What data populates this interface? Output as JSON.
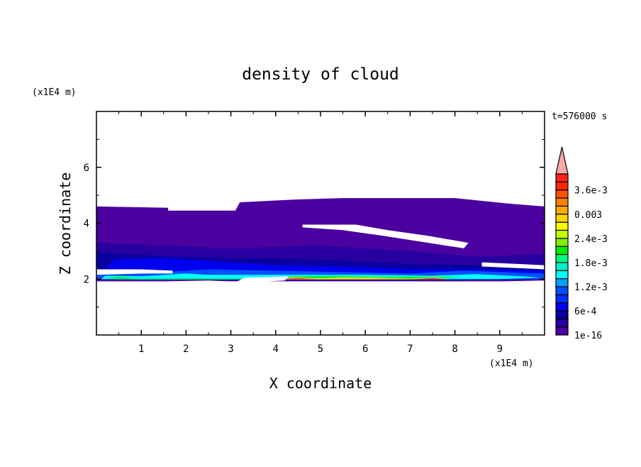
{
  "chart_data": {
    "type": "heatmap",
    "subtype": "filled-contour",
    "title": "density of cloud",
    "xlabel": "X coordinate",
    "ylabel": "Z coordinate",
    "x_unit": "(x1E4 m)",
    "y_unit": "(x1E4 m)",
    "time_label": "t=576000 s",
    "xlim": [
      0,
      10
    ],
    "ylim": [
      0,
      8
    ],
    "xticks": [
      1,
      2,
      3,
      4,
      5,
      6,
      7,
      8,
      9
    ],
    "yticks": [
      2,
      4,
      6
    ],
    "colorbar": {
      "levels_min": 1e-16,
      "level_step": 0.0002,
      "n_levels": 20,
      "extend": "max",
      "extend_color": "#F8A8A8",
      "colors": [
        "#4B00A0",
        "#2800A0",
        "#0A00A0",
        "#0000F0",
        "#0030FF",
        "#0050FF",
        "#00A0FF",
        "#00FFFF",
        "#00F0C8",
        "#00FF80",
        "#00F000",
        "#80F000",
        "#C8FF00",
        "#FFFF00",
        "#FFD700",
        "#FFAA00",
        "#FF8000",
        "#FF5000",
        "#FF2800",
        "#FF2020"
      ],
      "tick_labels": [
        "1e-16",
        "6e-4",
        "1.2e-3",
        "1.8e-3",
        "2.4e-3",
        "0.003",
        "3.6e-3"
      ],
      "tick_level_index": [
        0,
        3,
        6,
        9,
        12,
        15,
        18
      ]
    },
    "regions": [
      {
        "level": 0,
        "points": [
          [
            0,
            1.9
          ],
          [
            0,
            4.6
          ],
          [
            1.6,
            4.55
          ],
          [
            1.6,
            4.45
          ],
          [
            3.1,
            4.45
          ],
          [
            3.2,
            4.75
          ],
          [
            4.5,
            4.85
          ],
          [
            5.5,
            4.9
          ],
          [
            8,
            4.9
          ],
          [
            9.2,
            4.7
          ],
          [
            10,
            4.6
          ],
          [
            10,
            1.95
          ],
          [
            8.5,
            1.9
          ],
          [
            6,
            1.85
          ],
          [
            3.3,
            1.9
          ],
          [
            2.5,
            1.95
          ],
          [
            1,
            1.9
          ]
        ]
      },
      {
        "level": 1,
        "points": [
          [
            0,
            2.1
          ],
          [
            0,
            3.3
          ],
          [
            1.5,
            3.2
          ],
          [
            3,
            3.1
          ],
          [
            5,
            3.2
          ],
          [
            7,
            3.0
          ],
          [
            8.5,
            2.8
          ],
          [
            10,
            2.9
          ],
          [
            10,
            2.0
          ],
          [
            7,
            1.95
          ],
          [
            4,
            1.95
          ],
          [
            1,
            2.0
          ]
        ]
      },
      {
        "level": 2,
        "points": [
          [
            0,
            2.1
          ],
          [
            0,
            2.95
          ],
          [
            1.2,
            2.85
          ],
          [
            3,
            2.75
          ],
          [
            5,
            2.7
          ],
          [
            7,
            2.55
          ],
          [
            8.5,
            2.5
          ],
          [
            10,
            2.55
          ],
          [
            10,
            2.0
          ],
          [
            7,
            1.98
          ],
          [
            4,
            1.98
          ],
          [
            1,
            2.0
          ]
        ]
      },
      {
        "level": 3,
        "points": [
          [
            0,
            2.0
          ],
          [
            0.4,
            2.7
          ],
          [
            1.5,
            2.75
          ],
          [
            2.5,
            2.65
          ],
          [
            4,
            2.5
          ],
          [
            5.5,
            2.45
          ],
          [
            7,
            2.35
          ],
          [
            8.5,
            2.35
          ],
          [
            10,
            2.3
          ],
          [
            10,
            2.0
          ],
          [
            7,
            1.98
          ],
          [
            4,
            1.98
          ],
          [
            1,
            2.0
          ]
        ]
      },
      {
        "level": 5,
        "points": [
          [
            0,
            2.0
          ],
          [
            0,
            2.2
          ],
          [
            1.5,
            2.25
          ],
          [
            2.5,
            2.35
          ],
          [
            4,
            2.3
          ],
          [
            5.5,
            2.25
          ],
          [
            7,
            2.2
          ],
          [
            8.2,
            2.3
          ],
          [
            10,
            2.2
          ],
          [
            10,
            2.0
          ],
          [
            6,
            1.98
          ],
          [
            4,
            1.98
          ],
          [
            1,
            1.98
          ]
        ]
      },
      {
        "level": 7,
        "points": [
          [
            0.1,
            2.0
          ],
          [
            0.2,
            2.12
          ],
          [
            1,
            2.1
          ],
          [
            2,
            2.2
          ],
          [
            2.5,
            2.15
          ],
          [
            4.5,
            2.15
          ],
          [
            6,
            2.15
          ],
          [
            7.5,
            2.12
          ],
          [
            8.5,
            2.18
          ],
          [
            9.5,
            2.1
          ],
          [
            9.9,
            2.05
          ],
          [
            9,
            2.0
          ],
          [
            6,
            1.99
          ],
          [
            4,
            1.99
          ],
          [
            1,
            1.99
          ]
        ]
      },
      {
        "level": 10,
        "points": [
          [
            0.2,
            2.02
          ],
          [
            0.5,
            2.08
          ],
          [
            0.9,
            2.04
          ],
          [
            3.9,
            2.02
          ],
          [
            4.5,
            2.1
          ],
          [
            5.5,
            2.1
          ],
          [
            6.5,
            2.08
          ],
          [
            7.5,
            2.08
          ],
          [
            8.2,
            2.05
          ],
          [
            7,
            2.0
          ],
          [
            5,
            2.0
          ],
          [
            4,
            2.0
          ]
        ]
      },
      {
        "level": 14,
        "points": [
          [
            3.9,
            2.0
          ],
          [
            4.4,
            2.07
          ],
          [
            4.9,
            2.03
          ],
          [
            5.5,
            2.06
          ],
          [
            6,
            2.06
          ],
          [
            7.0,
            2.02
          ],
          [
            7.5,
            2.06
          ],
          [
            7.9,
            2.02
          ],
          [
            7,
            1.99
          ],
          [
            5,
            1.99
          ],
          [
            4,
            1.99
          ]
        ]
      },
      {
        "level": 18,
        "points": [
          [
            4.1,
            2.0
          ],
          [
            4.5,
            2.04
          ],
          [
            4.9,
            2.0
          ],
          [
            7.1,
            2.0
          ],
          [
            7.5,
            2.04
          ],
          [
            7.8,
            2.0
          ]
        ]
      }
    ],
    "holes": [
      [
        [
          4.6,
          3.95
        ],
        [
          5.8,
          3.95
        ],
        [
          6.5,
          3.75
        ],
        [
          7.4,
          3.55
        ],
        [
          8.3,
          3.3
        ],
        [
          8.2,
          3.1
        ],
        [
          7.4,
          3.3
        ],
        [
          6.4,
          3.55
        ],
        [
          5.5,
          3.75
        ],
        [
          4.6,
          3.85
        ]
      ],
      [
        [
          8.6,
          2.6
        ],
        [
          10,
          2.5
        ],
        [
          10,
          2.35
        ],
        [
          8.6,
          2.45
        ]
      ],
      [
        [
          0,
          2.15
        ],
        [
          0,
          2.35
        ],
        [
          1.0,
          2.35
        ],
        [
          1.7,
          2.3
        ],
        [
          1.7,
          2.2
        ],
        [
          1,
          2.2
        ]
      ],
      [
        [
          3.1,
          1.88
        ],
        [
          3.3,
          2.05
        ],
        [
          4.3,
          2.1
        ],
        [
          4.2,
          1.95
        ],
        [
          3.6,
          1.9
        ]
      ],
      [
        [
          0,
          1.75
        ],
        [
          10,
          1.75
        ],
        [
          10,
          1.92
        ],
        [
          0,
          1.92
        ]
      ]
    ]
  }
}
